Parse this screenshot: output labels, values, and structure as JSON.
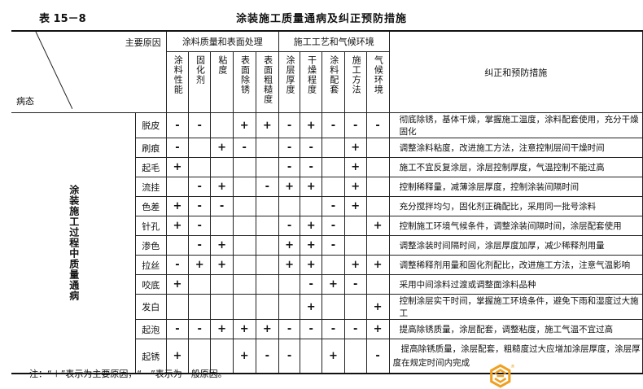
{
  "table_number": "表 15－8",
  "title": "涂装施工质量通病及纠正预防措施",
  "header": {
    "main_causes": "主要原因",
    "defect_state": "病态",
    "group1": "涂料质量和表面处理",
    "group2": "施工工艺和气候环境",
    "measures": "纠正和预防措施",
    "columns": [
      "涂料性能",
      "固化剂",
      "粘度",
      "表面除锈",
      "表面粗糙度",
      "涂层厚度",
      "干燥程度",
      "涂料配套",
      "施工方法",
      "气候环境"
    ]
  },
  "row_group_label": "涂装施工过程中质量通病",
  "rows": [
    {
      "defect": "脱皮",
      "marks": [
        "-",
        "-",
        "",
        "+",
        "+",
        "-",
        "+",
        "-",
        "-",
        "-"
      ],
      "measure": "彻底除锈，基体干燥，掌握施工温度，涂料配套使用，充分干燥固化"
    },
    {
      "defect": "刷痕",
      "marks": [
        "-",
        "",
        "+",
        "-",
        "",
        "-",
        "-",
        "",
        "+",
        ""
      ],
      "measure": "调整涂料粘度，改进施工方法，注意控制层间干燥时间"
    },
    {
      "defect": "起毛",
      "marks": [
        "+",
        "",
        "",
        "",
        "",
        "-",
        "-",
        "",
        "+",
        ""
      ],
      "measure": "施工不宜反复涂层，涂层控制厚度，气温控制不能过高"
    },
    {
      "defect": "流挂",
      "marks": [
        "",
        "-",
        "+",
        "",
        "-",
        "+",
        "+",
        "",
        "+",
        ""
      ],
      "measure": "控制稀释量，减薄涂层厚度，控制涂装间隔时间"
    },
    {
      "defect": "色差",
      "marks": [
        "+",
        "-",
        "-",
        "",
        "",
        "",
        "",
        "-",
        "+",
        ""
      ],
      "measure": "充分搅拌均匀，固化剂正确配比，采用同一批号涂料"
    },
    {
      "defect": "针孔",
      "marks": [
        "+",
        "-",
        "",
        "",
        "",
        "-",
        "+",
        "-",
        "",
        "+"
      ],
      "measure": "控制施工环境气候条件，调整涂装间隔时间，涂层配套使用"
    },
    {
      "defect": "渗色",
      "marks": [
        "",
        "-",
        "+",
        "",
        "",
        "+",
        "+",
        "-",
        "",
        ""
      ],
      "measure": "调整涂装时间隔时间，涂层厚度加厚，减少稀释剂用量"
    },
    {
      "defect": "拉丝",
      "marks": [
        "-",
        "+",
        "+",
        "",
        "",
        "+",
        "+",
        "",
        "+",
        "+"
      ],
      "measure": "调整稀释剂用量和固化剂配比，改进施工方法，注意气温影响"
    },
    {
      "defect": "咬底",
      "marks": [
        "+",
        "",
        "",
        "",
        "",
        "",
        "-",
        "+",
        "-",
        ""
      ],
      "measure": "采用中间涂料过渡或调整面涂料品种"
    },
    {
      "defect": "发白",
      "marks": [
        "",
        "",
        "",
        "",
        "",
        "",
        "+",
        "",
        "",
        "+"
      ],
      "measure": "控制涂层实干时间，掌握施工环境条件，避免下雨和湿度过大施工"
    },
    {
      "defect": "起泡",
      "marks": [
        "-",
        "-",
        "+",
        "+",
        "+",
        "-",
        "-",
        "-",
        "-",
        "+"
      ],
      "measure": "提高除锈质量，涂层配套，调整粘度，施工气温不宜过高"
    },
    {
      "defect": "起锈",
      "marks": [
        "+",
        "",
        "",
        "+",
        "-",
        "-",
        "",
        "+",
        "",
        "-"
      ],
      "measure": "提高除锈质量，涂层配套，粗糙度过大应增加涂层厚度，涂层厚度在规定时间内完成"
    }
  ],
  "note": "注：“＋”表示为主要原因，“－”表示为一般原因。",
  "logo": {
    "color": "#f0a020",
    "mark": "®"
  }
}
